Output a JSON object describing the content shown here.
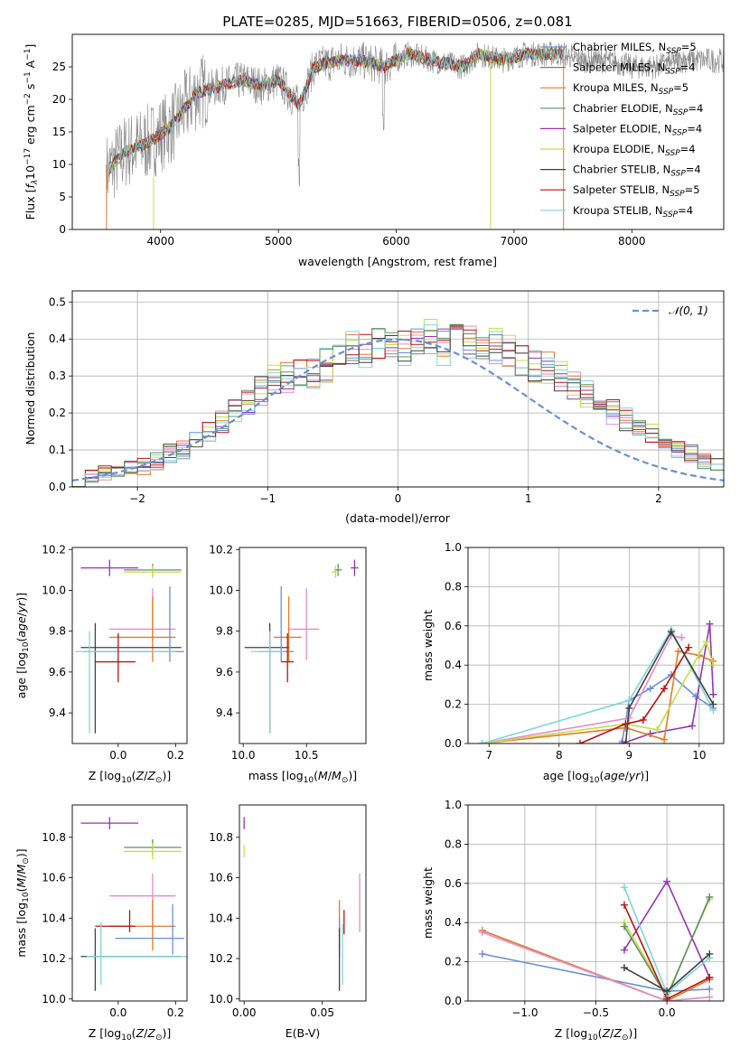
{
  "figure": {
    "title": "PLATE=0285, MJD=51663, FIBERID=0506, z=0.081"
  },
  "colors": {
    "Chabrier MILES": "#6a8fd6",
    "Salpeter MILES": "#7a7a7a",
    "Kroupa MILES": "#e07b2a",
    "Chabrier ELODIE": "#5f8f6a",
    "Salpeter ELODIE": "#9435b0",
    "Kroupa ELODIE": "#c7dc47",
    "Chabrier STELIB": "#404040",
    "Salpeter STELIB": "#b81414",
    "Kroupa STELIB": "#80d4dc",
    "pink": "#e48bc6"
  },
  "chart_data": [
    {
      "id": "spectrum",
      "type": "line",
      "xlabel": "wavelength [Angstrom, rest frame]",
      "ylabel": "Flux [f_λ10^-17 erg cm^-2 s^-1 A^-1]",
      "xlim": [
        3250,
        8780
      ],
      "ylim": [
        0,
        30
      ],
      "xticks": [
        4000,
        5000,
        6000,
        7000,
        8000
      ],
      "yticks": [
        0,
        5,
        10,
        15,
        20,
        25
      ],
      "grid": false,
      "legend_position": "right",
      "legend": [
        {
          "name": "Chabrier MILES",
          "nssp": "5"
        },
        {
          "name": "Salpeter MILES",
          "nssp": "4"
        },
        {
          "name": "Kroupa MILES",
          "nssp": "5"
        },
        {
          "name": "Chabrier ELODIE",
          "nssp": "4"
        },
        {
          "name": "Salpeter ELODIE",
          "nssp": "4"
        },
        {
          "name": "Kroupa ELODIE",
          "nssp": "4"
        },
        {
          "name": "Chabrier STELIB",
          "nssp": "4"
        },
        {
          "name": "Salpeter STELIB",
          "nssp": "5"
        },
        {
          "name": "Kroupa STELIB",
          "nssp": "4"
        }
      ],
      "data_envelope": {
        "x": [
          3550,
          3700,
          3850,
          3950,
          4100,
          4300,
          4500,
          4700,
          4861,
          5000,
          5175,
          5300,
          5500,
          5700,
          5900,
          6100,
          6300,
          6563,
          6700,
          6900,
          7100,
          7300,
          7420,
          7600,
          7800,
          8000,
          8200,
          8400,
          8780
        ],
        "y": [
          9,
          12,
          13,
          14,
          16,
          21,
          22,
          23,
          22,
          23,
          19,
          25,
          26,
          26,
          25,
          27,
          26,
          25,
          27,
          26,
          27,
          27,
          27,
          26,
          26,
          25,
          25,
          26,
          26
        ]
      }
    },
    {
      "id": "residual-histogram",
      "type": "line",
      "xlabel": "(data-model)/error",
      "ylabel": "Normed distribution",
      "xlim": [
        -2.5,
        2.5
      ],
      "ylim": [
        0,
        0.53
      ],
      "xticks": [
        -2,
        -1,
        0,
        1,
        2
      ],
      "yticks": [
        0.0,
        0.1,
        0.2,
        0.3,
        0.4,
        0.5
      ],
      "grid": true,
      "legend_position": "top-right",
      "legend": [
        "𝒩(0, 1)"
      ],
      "reference_curve": "gaussian mean 0 sigma 1",
      "histogram_bins": {
        "start": -2.5,
        "width": 0.1
      },
      "histogram_mean": [
        0.02,
        0.03,
        0.04,
        0.045,
        0.05,
        0.055,
        0.07,
        0.09,
        0.1,
        0.12,
        0.15,
        0.18,
        0.2,
        0.23,
        0.26,
        0.29,
        0.3,
        0.3,
        0.31,
        0.33,
        0.34,
        0.37,
        0.37,
        0.39,
        0.38,
        0.38,
        0.39,
        0.4,
        0.38,
        0.4,
        0.4,
        0.39,
        0.38,
        0.37,
        0.35,
        0.33,
        0.32,
        0.3,
        0.27,
        0.25,
        0.22,
        0.2,
        0.18,
        0.15,
        0.14,
        0.12,
        0.1,
        0.09,
        0.07,
        0.06,
        0.05,
        0.04,
        0.035,
        0.03,
        0.025
      ]
    },
    {
      "id": "age-vs-metallicity",
      "type": "scatter",
      "xlabel": "Z [log10(Z/Z⊙)]",
      "ylabel": "age [log10(age/yr)]",
      "xlim": [
        -0.16,
        0.24
      ],
      "ylim": [
        9.25,
        10.21
      ],
      "xticks": [
        -0.0,
        0.2
      ],
      "yticks": [
        9.4,
        9.6,
        9.8,
        10.0,
        10.2
      ],
      "grid": false,
      "points": [
        {
          "model": "Salpeter ELODIE",
          "x": -0.03,
          "y": 10.11,
          "xerr": [
            0.1,
            0.1
          ],
          "yerr": [
            0.04,
            0.04
          ]
        },
        {
          "model": "Chabrier ELODIE",
          "x": 0.12,
          "y": 10.1,
          "xerr": [
            0.1,
            0.1
          ],
          "yerr": [
            0.03,
            0.03
          ]
        },
        {
          "model": "Kroupa ELODIE",
          "x": 0.12,
          "y": 10.09,
          "xerr": [
            0.1,
            0.1
          ],
          "yerr": [
            0.03,
            0.03
          ]
        },
        {
          "model": "pink",
          "x": 0.12,
          "y": 9.81,
          "xerr": [
            0.15,
            0.08
          ],
          "yerr": [
            0.06,
            0.2
          ]
        },
        {
          "model": "Kroupa MILES",
          "x": 0.12,
          "y": 9.77,
          "xerr": [
            0.15,
            0.08
          ],
          "yerr": [
            0.12,
            0.2
          ]
        },
        {
          "model": "Chabrier STELIB",
          "x": -0.08,
          "y": 9.72,
          "xerr": [
            0.05,
            0.3
          ],
          "yerr": [
            0.42,
            0.12
          ]
        },
        {
          "model": "Chabrier MILES",
          "x": 0.18,
          "y": 9.7,
          "xerr": [
            0.3,
            0.05
          ],
          "yerr": [
            0.05,
            0.32
          ]
        },
        {
          "model": "Kroupa STELIB",
          "x": -0.1,
          "y": 9.7,
          "xerr": [
            0.05,
            0.3
          ],
          "yerr": [
            0.4,
            0.1
          ]
        },
        {
          "model": "Salpeter STELIB",
          "x": 0.0,
          "y": 9.65,
          "xerr": [
            0.08,
            0.06
          ],
          "yerr": [
            0.1,
            0.14
          ]
        }
      ]
    },
    {
      "id": "age-vs-mass",
      "type": "scatter",
      "xlabel": "mass [log10(M/M⊙)]",
      "ylabel": "",
      "xlim": [
        9.97,
        10.97
      ],
      "ylim": [
        9.25,
        10.21
      ],
      "xticks": [
        10.0,
        10.5
      ],
      "yticks": [
        9.4,
        9.6,
        9.8,
        10.0,
        10.2
      ],
      "grid": false,
      "points": [
        {
          "model": "Salpeter ELODIE",
          "x": 10.88,
          "y": 10.11,
          "xerr": [
            0.03,
            0.03
          ],
          "yerr": [
            0.04,
            0.04
          ]
        },
        {
          "model": "Chabrier ELODIE",
          "x": 10.75,
          "y": 10.1,
          "xerr": [
            0.03,
            0.03
          ],
          "yerr": [
            0.03,
            0.03
          ]
        },
        {
          "model": "Kroupa ELODIE",
          "x": 10.73,
          "y": 10.09,
          "xerr": [
            0.03,
            0.03
          ],
          "yerr": [
            0.03,
            0.03
          ]
        },
        {
          "model": "pink",
          "x": 10.5,
          "y": 9.81,
          "xerr": [
            0.15,
            0.1
          ],
          "yerr": [
            0.15,
            0.2
          ]
        },
        {
          "model": "Kroupa MILES",
          "x": 10.36,
          "y": 9.77,
          "xerr": [
            0.12,
            0.1
          ],
          "yerr": [
            0.12,
            0.2
          ]
        },
        {
          "model": "Chabrier STELIB",
          "x": 10.21,
          "y": 9.72,
          "xerr": [
            0.2,
            0.15
          ],
          "yerr": [
            0.42,
            0.12
          ]
        },
        {
          "model": "Chabrier MILES",
          "x": 10.3,
          "y": 9.7,
          "xerr": [
            0.18,
            0.1
          ],
          "yerr": [
            0.05,
            0.32
          ]
        },
        {
          "model": "Kroupa STELIB",
          "x": 10.21,
          "y": 9.7,
          "xerr": [
            0.15,
            0.1
          ],
          "yerr": [
            0.4,
            0.1
          ]
        },
        {
          "model": "Salpeter STELIB",
          "x": 10.35,
          "y": 9.65,
          "xerr": [
            0.05,
            0.05
          ],
          "yerr": [
            0.1,
            0.14
          ]
        }
      ]
    },
    {
      "id": "mass-weight-vs-age",
      "type": "line",
      "xlabel": "age [log10(age/yr)]",
      "ylabel": "mass weight",
      "xlim": [
        6.7,
        10.35
      ],
      "ylim": [
        0,
        1
      ],
      "xticks": [
        7,
        8,
        9,
        10
      ],
      "yticks": [
        0.0,
        0.2,
        0.4,
        0.6,
        0.8,
        1.0
      ],
      "grid": true,
      "series": [
        {
          "model": "Chabrier MILES",
          "x": [
            8.9,
            9.0,
            9.3,
            9.6,
            9.95,
            10.2
          ],
          "y": [
            0.01,
            0.22,
            0.28,
            0.35,
            0.24,
            0.18
          ]
        },
        {
          "model": "Salpeter ELODIE",
          "x": [
            8.9,
            9.3,
            9.9,
            10.15,
            10.2
          ],
          "y": [
            0.0,
            0.05,
            0.09,
            0.61,
            0.25
          ]
        },
        {
          "model": "Kroupa MILES",
          "x": [
            6.9,
            8.95,
            9.5,
            9.7,
            10.0,
            10.2
          ],
          "y": [
            0.0,
            0.08,
            0.02,
            0.47,
            0.45,
            0.42
          ]
        },
        {
          "model": "pink",
          "x": [
            6.9,
            9.0,
            9.6,
            9.75
          ],
          "y": [
            0.0,
            0.13,
            0.55,
            0.54
          ]
        },
        {
          "model": "Kroupa ELODIE",
          "x": [
            6.9,
            8.95,
            9.4,
            10.1,
            10.2
          ],
          "y": [
            0.0,
            0.1,
            0.07,
            0.52,
            0.4
          ]
        },
        {
          "model": "Salpeter STELIB",
          "x": [
            8.3,
            8.95,
            9.2,
            9.5,
            9.85
          ],
          "y": [
            0.0,
            0.1,
            0.12,
            0.28,
            0.49
          ]
        },
        {
          "model": "Kroupa STELIB",
          "x": [
            6.9,
            9.0,
            9.6,
            10.2
          ],
          "y": [
            0.0,
            0.22,
            0.58,
            0.17
          ]
        },
        {
          "model": "Chabrier STELIB",
          "x": [
            8.95,
            9.0,
            9.6,
            10.2
          ],
          "y": [
            0.0,
            0.18,
            0.57,
            0.2
          ]
        }
      ]
    },
    {
      "id": "mass-vs-metallicity",
      "type": "scatter",
      "xlabel": "Z [log10(Z/Z⊙)]",
      "ylabel": "mass [log10(M/M⊙)]",
      "xlim": [
        -0.16,
        0.24
      ],
      "ylim": [
        9.99,
        10.96
      ],
      "xticks": [
        0.0,
        0.2
      ],
      "yticks": [
        10.0,
        10.2,
        10.4,
        10.6,
        10.8
      ],
      "grid": false,
      "points": [
        {
          "model": "Salpeter ELODIE",
          "x": -0.03,
          "y": 10.87,
          "xerr": [
            0.1,
            0.1
          ],
          "yerr": [
            0.03,
            0.03
          ]
        },
        {
          "model": "Chabrier ELODIE",
          "x": 0.12,
          "y": 10.75,
          "xerr": [
            0.1,
            0.1
          ],
          "yerr": [
            0.04,
            0.04
          ]
        },
        {
          "model": "Kroupa ELODIE",
          "x": 0.12,
          "y": 10.73,
          "xerr": [
            0.1,
            0.1
          ],
          "yerr": [
            0.04,
            0.04
          ]
        },
        {
          "model": "pink",
          "x": 0.12,
          "y": 10.51,
          "xerr": [
            0.15,
            0.08
          ],
          "yerr": [
            0.17,
            0.11
          ]
        },
        {
          "model": "Kroupa MILES",
          "x": 0.12,
          "y": 10.36,
          "xerr": [
            0.15,
            0.08
          ],
          "yerr": [
            0.12,
            0.13
          ]
        },
        {
          "model": "Salpeter STELIB",
          "x": 0.04,
          "y": 10.36,
          "xerr": [
            0.12,
            0.02
          ],
          "yerr": [
            0.03,
            0.08
          ]
        },
        {
          "model": "Chabrier MILES",
          "x": 0.19,
          "y": 10.3,
          "xerr": [
            0.2,
            0.04
          ],
          "yerr": [
            0.08,
            0.17
          ]
        },
        {
          "model": "Chabrier STELIB",
          "x": -0.08,
          "y": 10.21,
          "xerr": [
            0.05,
            0.3
          ],
          "yerr": [
            0.17,
            0.14
          ]
        },
        {
          "model": "Kroupa STELIB",
          "x": -0.06,
          "y": 10.21,
          "xerr": [
            0.05,
            0.3
          ],
          "yerr": [
            0.14,
            0.17
          ]
        }
      ]
    },
    {
      "id": "mass-vs-ebv",
      "type": "scatter",
      "xlabel": "E(B-V)",
      "ylabel": "",
      "xlim": [
        -0.003,
        0.078
      ],
      "ylim": [
        9.99,
        10.96
      ],
      "xticks": [
        0.0,
        0.05
      ],
      "yticks": [
        10.0,
        10.2,
        10.4,
        10.6,
        10.8
      ],
      "grid": false,
      "points": [
        {
          "model": "Salpeter ELODIE",
          "x": 0.0,
          "y": 10.87,
          "yerr": [
            0.03,
            0.03
          ]
        },
        {
          "model": "Kroupa ELODIE",
          "x": 0.0,
          "y": 10.73,
          "yerr": [
            0.03,
            0.03
          ]
        },
        {
          "model": "pink",
          "x": 0.074,
          "y": 10.5,
          "yerr": [
            0.17,
            0.12
          ]
        },
        {
          "model": "Kroupa MILES",
          "x": 0.061,
          "y": 10.37,
          "yerr": [
            0.13,
            0.12
          ]
        },
        {
          "model": "Salpeter STELIB",
          "x": 0.064,
          "y": 10.37,
          "yerr": [
            0.05,
            0.07
          ]
        },
        {
          "model": "Chabrier MILES",
          "x": 0.061,
          "y": 10.3,
          "yerr": [
            0.1,
            0.1
          ]
        },
        {
          "model": "Chabrier STELIB",
          "x": 0.061,
          "y": 10.21,
          "yerr": [
            0.17,
            0.14
          ]
        },
        {
          "model": "Kroupa STELIB",
          "x": 0.063,
          "y": 10.21,
          "yerr": [
            0.14,
            0.16
          ]
        }
      ]
    },
    {
      "id": "mass-weight-vs-metallicity",
      "type": "line",
      "xlabel": "Z [log10(Z/Z⊙)]",
      "ylabel": "mass weight",
      "xlim": [
        -1.4,
        0.4
      ],
      "ylim": [
        0,
        1
      ],
      "xticks": [
        -1.0,
        -0.5,
        0.0
      ],
      "yticks": [
        0.0,
        0.2,
        0.4,
        0.6,
        0.8,
        1.0
      ],
      "grid": true,
      "series": [
        {
          "model": "Chabrier MILES",
          "x": [
            -1.3,
            0.0,
            0.3
          ],
          "y": [
            0.24,
            0.05,
            0.06
          ]
        },
        {
          "model": "Kroupa MILES",
          "x": [
            -1.3,
            0.0,
            0.3
          ],
          "y": [
            0.36,
            0.0,
            0.11
          ]
        },
        {
          "model": "pink",
          "x": [
            -1.3,
            0.0,
            0.3
          ],
          "y": [
            0.35,
            0.0,
            0.02
          ]
        },
        {
          "model": "Salpeter ELODIE",
          "x": [
            -0.3,
            0.0,
            0.3
          ],
          "y": [
            0.26,
            0.61,
            0.12
          ]
        },
        {
          "model": "Kroupa ELODIE",
          "x": [
            -0.3,
            0.0,
            0.3
          ],
          "y": [
            0.4,
            0.03,
            0.52
          ]
        },
        {
          "model": "Chabrier ELODIE",
          "x": [
            -0.3,
            0.0,
            0.3
          ],
          "y": [
            0.38,
            0.02,
            0.53
          ]
        },
        {
          "model": "Salpeter STELIB",
          "x": [
            -0.3,
            0.0,
            0.3
          ],
          "y": [
            0.49,
            0.01,
            0.12
          ]
        },
        {
          "model": "Kroupa STELIB",
          "x": [
            -0.3,
            0.0,
            0.3
          ],
          "y": [
            0.58,
            0.04,
            0.22
          ]
        },
        {
          "model": "Chabrier STELIB",
          "x": [
            -0.3,
            0.0,
            0.3
          ],
          "y": [
            0.17,
            0.05,
            0.24
          ]
        }
      ]
    }
  ]
}
